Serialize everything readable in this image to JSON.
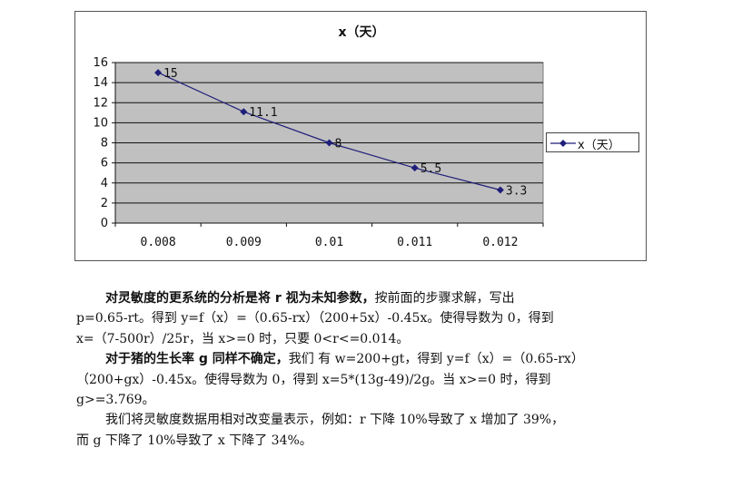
{
  "chart_data": {
    "type": "line",
    "title": "x（天）",
    "categories": [
      "0.008",
      "0.009",
      "0.01",
      "0.011",
      "0.012"
    ],
    "series": [
      {
        "name": "x（天）",
        "values": [
          15,
          11.1,
          8,
          5.5,
          3.3
        ],
        "color": "#1f1f7a"
      }
    ],
    "data_labels": [
      "15",
      "11.1",
      "8",
      "5.5",
      "3.3"
    ],
    "y_ticks": [
      "0",
      "2",
      "4",
      "6",
      "8",
      "10",
      "12",
      "14",
      "16"
    ],
    "ylim": [
      0,
      16
    ],
    "grid": true,
    "plot_background": "#c0c0c0",
    "legend_position": "right"
  },
  "paragraphs": {
    "p1": {
      "bold": "对灵敏度的更系统的分析是将 r 视为未知参数，",
      "line1_rest": "按前面的步骤求解，写出",
      "line2": "p=0.65-rt。得到 y=f（x）=（0.65-rx）（200+5x）-0.45x。使得导数为 0，得到",
      "line3": "x=（7-500r）/25r，当 x>=0 时，只要 0<r<=0.014。"
    },
    "p2": {
      "bold": "对于猪的生长率 g 同样不确定，",
      "line1_rest": "我们 有 w=200+gt，得到 y=f（x）=（0.65-rx）",
      "line2": "（200+gx）-0.45x。使得导数为 0，得到 x=5*(13g-49)/2g。当 x>=0 时，得到",
      "line3": "g>=3.769。"
    },
    "p3": {
      "line1": "我们将灵敏度数据用相对改变量表示，例如：r 下降 10%导致了 x 增加了 39%，",
      "line2": "而 g 下降了 10%导致了 x 下降了 34%。"
    }
  }
}
